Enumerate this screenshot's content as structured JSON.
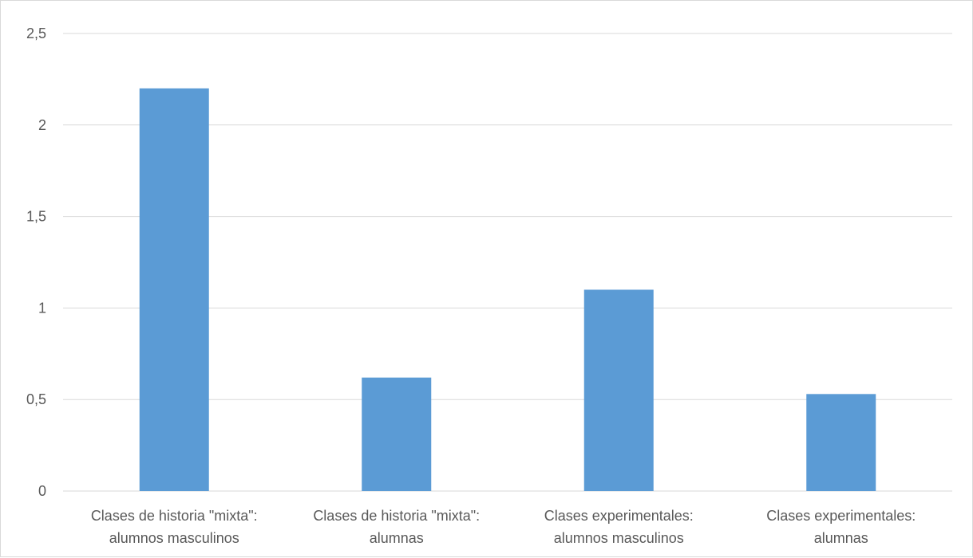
{
  "chart_data": {
    "type": "bar",
    "categories": [
      [
        "Clases de historia \"mixta\":",
        "alumnos masculinos"
      ],
      [
        "Clases de historia \"mixta\":",
        "alumnas"
      ],
      [
        "Clases experimentales:",
        "alumnos masculinos"
      ],
      [
        "Clases experimentales:",
        "alumnas"
      ]
    ],
    "values": [
      2.2,
      0.62,
      1.1,
      0.53
    ],
    "yticks": [
      "0",
      "0,5",
      "1",
      "1,5",
      "2",
      "2,5"
    ],
    "ylim": [
      0,
      2.5
    ],
    "grid": true,
    "bar_color": "#5b9bd5",
    "grid_color": "#d9d9d9",
    "text_color": "#595959"
  }
}
